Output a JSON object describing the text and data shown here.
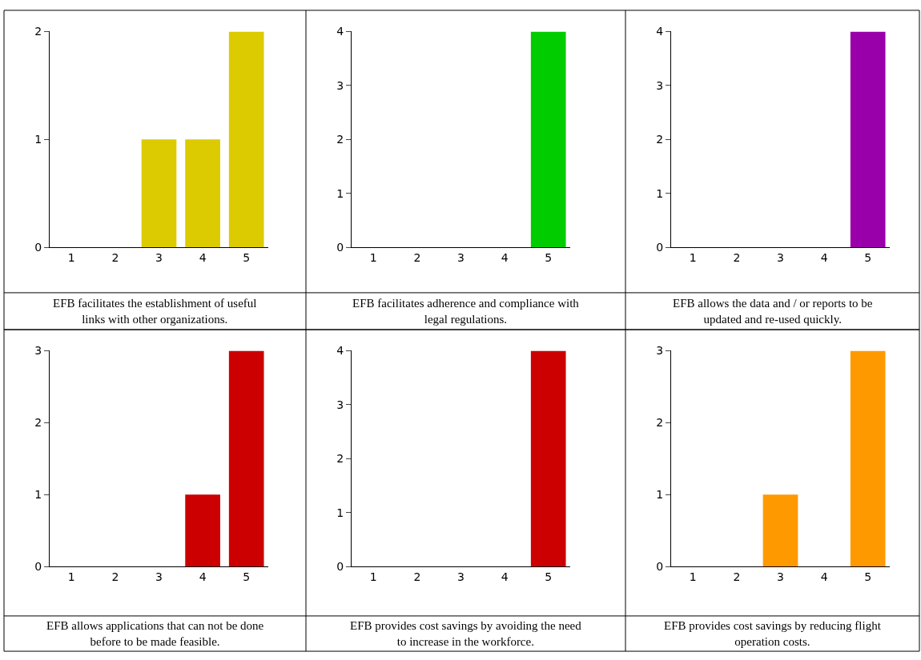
{
  "chart_data": [
    {
      "type": "bar",
      "categories": [
        "1",
        "2",
        "3",
        "4",
        "5"
      ],
      "values": [
        0,
        0,
        1,
        1,
        2
      ],
      "color": "#dccb00",
      "ylim": [
        0,
        2
      ],
      "yticks": [
        0,
        1,
        2
      ],
      "annotations": [
        "EFB facilitates the establishment of useful links with other organizations."
      ]
    },
    {
      "type": "bar",
      "categories": [
        "1",
        "2",
        "3",
        "4",
        "5"
      ],
      "values": [
        0,
        0,
        0,
        0,
        4
      ],
      "color": "#00cc00",
      "ylim": [
        0,
        4
      ],
      "yticks": [
        0,
        1,
        2,
        3,
        4
      ],
      "annotations": [
        "EFB facilitates adherence and compliance with legal regulations."
      ]
    },
    {
      "type": "bar",
      "categories": [
        "1",
        "2",
        "3",
        "4",
        "5"
      ],
      "values": [
        0,
        0,
        0,
        0,
        4
      ],
      "color": "#9900aa",
      "ylim": [
        0,
        4
      ],
      "yticks": [
        0,
        1,
        2,
        3,
        4
      ],
      "annotations": [
        "EFB allows the data and / or reports to be updated and re-used quickly."
      ]
    },
    {
      "type": "bar",
      "categories": [
        "1",
        "2",
        "3",
        "4",
        "5"
      ],
      "values": [
        0,
        0,
        0,
        1,
        3
      ],
      "color": "#cc0000",
      "ylim": [
        0,
        3
      ],
      "yticks": [
        0,
        1,
        2,
        3
      ],
      "annotations": [
        "EFB allows applications that can not be done before to be made feasible."
      ]
    },
    {
      "type": "bar",
      "categories": [
        "1",
        "2",
        "3",
        "4",
        "5"
      ],
      "values": [
        0,
        0,
        0,
        0,
        4
      ],
      "color": "#cc0000",
      "ylim": [
        0,
        4
      ],
      "yticks": [
        0,
        1,
        2,
        3,
        4
      ],
      "annotations": [
        "EFB provides cost savings by avoiding the need to increase in the workforce."
      ]
    },
    {
      "type": "bar",
      "categories": [
        "1",
        "2",
        "3",
        "4",
        "5"
      ],
      "values": [
        0,
        0,
        1,
        0,
        3
      ],
      "color": "#ff9900",
      "ylim": [
        0,
        3
      ],
      "yticks": [
        0,
        1,
        2,
        3
      ],
      "annotations": [
        "EFB provides cost savings by reducing flight operation costs."
      ]
    }
  ]
}
